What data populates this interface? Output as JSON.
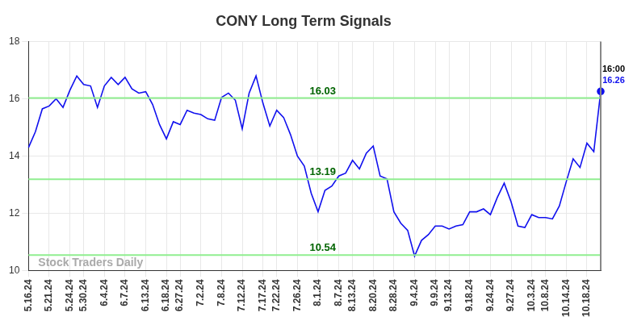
{
  "chart_data": {
    "type": "line",
    "title": "CONY Long Term Signals",
    "categories": [
      "5.16.24",
      null,
      null,
      "5.21.24",
      null,
      null,
      "5.24.24",
      null,
      "5.30.24",
      null,
      null,
      "6.4.24",
      null,
      null,
      "6.7.24",
      null,
      null,
      "6.13.24",
      null,
      null,
      "6.18.24",
      null,
      "6.27.24",
      null,
      null,
      "7.2.24",
      null,
      null,
      "7.8.24",
      null,
      null,
      "7.12.24",
      null,
      null,
      "7.17.24",
      null,
      "7.22.24",
      null,
      null,
      "7.26.24",
      null,
      null,
      "8.1.24",
      null,
      null,
      "8.7.24",
      null,
      "8.13.24",
      null,
      null,
      "8.20.24",
      null,
      null,
      "8.28.24",
      null,
      null,
      "9.4.24",
      null,
      null,
      "9.9.24",
      null,
      "9.13.24",
      null,
      null,
      "9.18.24",
      null,
      null,
      "9.24.24",
      null,
      null,
      "9.27.24",
      null,
      null,
      "10.3.24",
      null,
      "10.8.24",
      null,
      null,
      "10.14.24",
      null,
      null,
      "10.18.24",
      null,
      null
    ],
    "values": [
      14.3,
      14.85,
      15.65,
      15.75,
      16.0,
      15.7,
      16.3,
      16.8,
      16.5,
      16.45,
      15.7,
      16.45,
      16.75,
      16.5,
      16.75,
      16.35,
      16.2,
      16.25,
      15.8,
      15.1,
      14.6,
      15.2,
      15.1,
      15.6,
      15.5,
      15.45,
      15.3,
      15.25,
      16.05,
      16.2,
      15.95,
      14.95,
      16.2,
      16.8,
      15.85,
      15.05,
      15.6,
      15.35,
      14.75,
      14.0,
      13.65,
      12.7,
      12.05,
      12.8,
      12.95,
      13.3,
      13.4,
      13.85,
      13.55,
      14.1,
      14.35,
      13.3,
      13.2,
      12.05,
      11.65,
      11.4,
      10.5,
      11.05,
      11.25,
      11.55,
      11.55,
      11.45,
      11.55,
      11.6,
      12.05,
      12.05,
      12.15,
      11.95,
      12.55,
      13.05,
      12.4,
      11.55,
      11.5,
      11.95,
      11.85,
      11.85,
      11.8,
      12.25,
      13.1,
      13.9,
      13.6,
      14.45,
      14.15,
      16.26
    ],
    "color": "#1010ee",
    "ylim": [
      10,
      18
    ],
    "yticks": [
      10,
      12,
      14,
      16,
      18
    ],
    "grid": true,
    "annotations": {
      "lines": [
        {
          "value": 16.03,
          "label": "16.03",
          "color": "#90ee90"
        },
        {
          "value": 13.19,
          "label": "13.19",
          "color": "#90ee90"
        },
        {
          "value": 10.54,
          "label": "10.54",
          "color": "#90ee90"
        }
      ],
      "last_point": {
        "time_label": "16:00",
        "value_label": "16.26"
      },
      "watermark": "Stock Traders Daily"
    }
  }
}
